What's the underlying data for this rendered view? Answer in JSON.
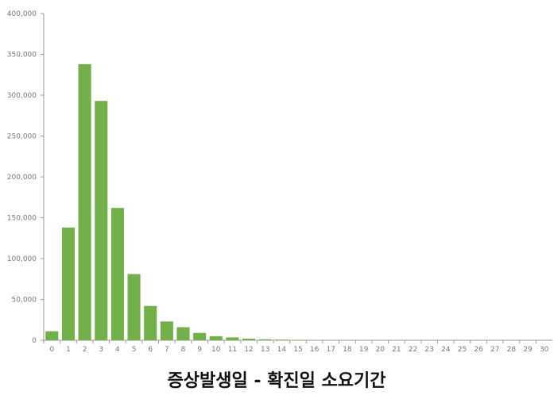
{
  "chart_data": {
    "type": "bar",
    "title": "증상발생일 - 확진일 소요기간",
    "xlabel": "",
    "ylabel": "",
    "ylim": [
      0,
      400000
    ],
    "y_ticks": [
      0,
      50000,
      100000,
      150000,
      200000,
      250000,
      300000,
      350000,
      400000
    ],
    "y_tick_labels": [
      "0",
      "50,000",
      "100,000",
      "150,000",
      "200,000",
      "250,000",
      "300,000",
      "350,000",
      "400,000"
    ],
    "categories": [
      "0",
      "1",
      "2",
      "3",
      "4",
      "5",
      "6",
      "7",
      "8",
      "9",
      "10",
      "11",
      "12",
      "13",
      "14",
      "15",
      "16",
      "17",
      "18",
      "19",
      "20",
      "21",
      "22",
      "23",
      "24",
      "25",
      "26",
      "27",
      "28",
      "29",
      "30"
    ],
    "values": [
      11000,
      138000,
      338000,
      293000,
      162000,
      81000,
      42000,
      23000,
      16000,
      9000,
      5000,
      3500,
      2000,
      1200,
      800,
      400,
      250,
      150,
      100,
      80,
      60,
      50,
      40,
      30,
      25,
      20,
      15,
      10,
      8,
      6,
      5
    ],
    "bar_color": "#72b04a",
    "axis_color": "#999999",
    "grid": false
  }
}
